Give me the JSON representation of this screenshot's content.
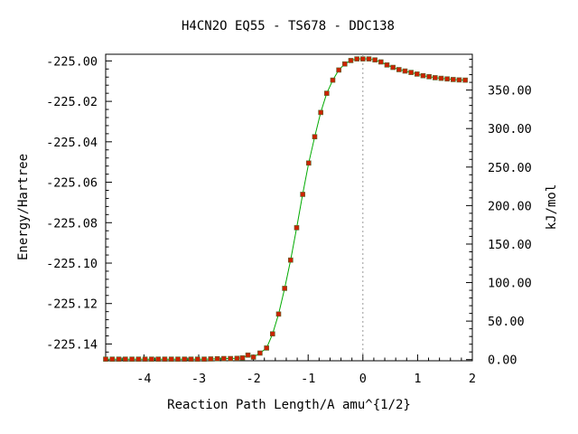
{
  "chart_data": {
    "type": "line",
    "title": "H4CN2O   EQ55 - TS678 - DDC138",
    "xlabel": "Reaction Path Length/A amu^{1/2}",
    "ylabel": "Energy/Hartree",
    "y2label": "kJ/mol",
    "xlim": [
      -4.7,
      2.0
    ],
    "ylim": [
      -225.1483,
      -224.9967
    ],
    "y2lim": [
      -1.5,
      396.5
    ],
    "grid": false,
    "line_color": "#00aa00",
    "marker_color": "#cc2200",
    "marker_edge_color": "#556b2f",
    "ts_line_color": "#999999",
    "ts_x": 0.0,
    "x_ticks": [
      -4,
      -3,
      -2,
      -1,
      0,
      1,
      2
    ],
    "x_tick_labels": [
      "-4",
      "-3",
      "-2",
      "-1",
      "0",
      "1",
      "2"
    ],
    "y_ticks": [
      -225.0,
      -225.02,
      -225.04,
      -225.06,
      -225.08,
      -225.1,
      -225.12,
      -225.14
    ],
    "y_tick_labels": [
      "-225.00",
      "-225.02",
      "-225.04",
      "-225.06",
      "-225.08",
      "-225.10",
      "-225.12",
      "-225.14"
    ],
    "y2_ticks": [
      0,
      50,
      100,
      150,
      200,
      250,
      300,
      350
    ],
    "y2_tick_labels": [
      "0.00",
      "50.00",
      "100.00",
      "150.00",
      "200.00",
      "250.00",
      "300.00",
      "350.00"
    ],
    "series": [
      {
        "x": [
          -4.7,
          -4.58,
          -4.46,
          -4.34,
          -4.22,
          -4.1,
          -3.98,
          -3.86,
          -3.74,
          -3.62,
          -3.5,
          -3.38,
          -3.26,
          -3.14,
          -3.02,
          -2.9,
          -2.78,
          -2.66,
          -2.54,
          -2.42,
          -2.3,
          -2.2,
          -2.1,
          -2.0,
          -1.88,
          -1.76,
          -1.65,
          -1.54,
          -1.43,
          -1.32,
          -1.21,
          -1.1,
          -0.99,
          -0.88,
          -0.77,
          -0.66,
          -0.55,
          -0.44,
          -0.33,
          -0.22,
          -0.11,
          0.0,
          0.11,
          0.22,
          0.33,
          0.44,
          0.55,
          0.66,
          0.77,
          0.88,
          0.99,
          1.1,
          1.21,
          1.32,
          1.43,
          1.54,
          1.65,
          1.76,
          1.87
        ],
        "y": [
          -225.1475,
          -225.1475,
          -225.1475,
          -225.1475,
          -225.1475,
          -225.1475,
          -225.1475,
          -225.1475,
          -225.1475,
          -225.1475,
          -225.1475,
          -225.1475,
          -225.1475,
          -225.1475,
          -225.1475,
          -225.1475,
          -225.1474,
          -225.1473,
          -225.1472,
          -225.1472,
          -225.1471,
          -225.1469,
          -225.1455,
          -225.1465,
          -225.1445,
          -225.142,
          -225.135,
          -225.1252,
          -225.1125,
          -225.0985,
          -225.0825,
          -225.066,
          -225.0505,
          -225.0375,
          -225.0255,
          -225.016,
          -225.0095,
          -225.0045,
          -225.0015,
          -224.9998,
          -224.999,
          -224.999,
          -224.999,
          -224.9995,
          -225.0005,
          -225.002,
          -225.0032,
          -225.0043,
          -225.005,
          -225.0057,
          -225.0065,
          -225.0073,
          -225.0078,
          -225.0083,
          -225.0086,
          -225.0089,
          -225.0092,
          -225.0094,
          -225.0095
        ]
      }
    ]
  }
}
